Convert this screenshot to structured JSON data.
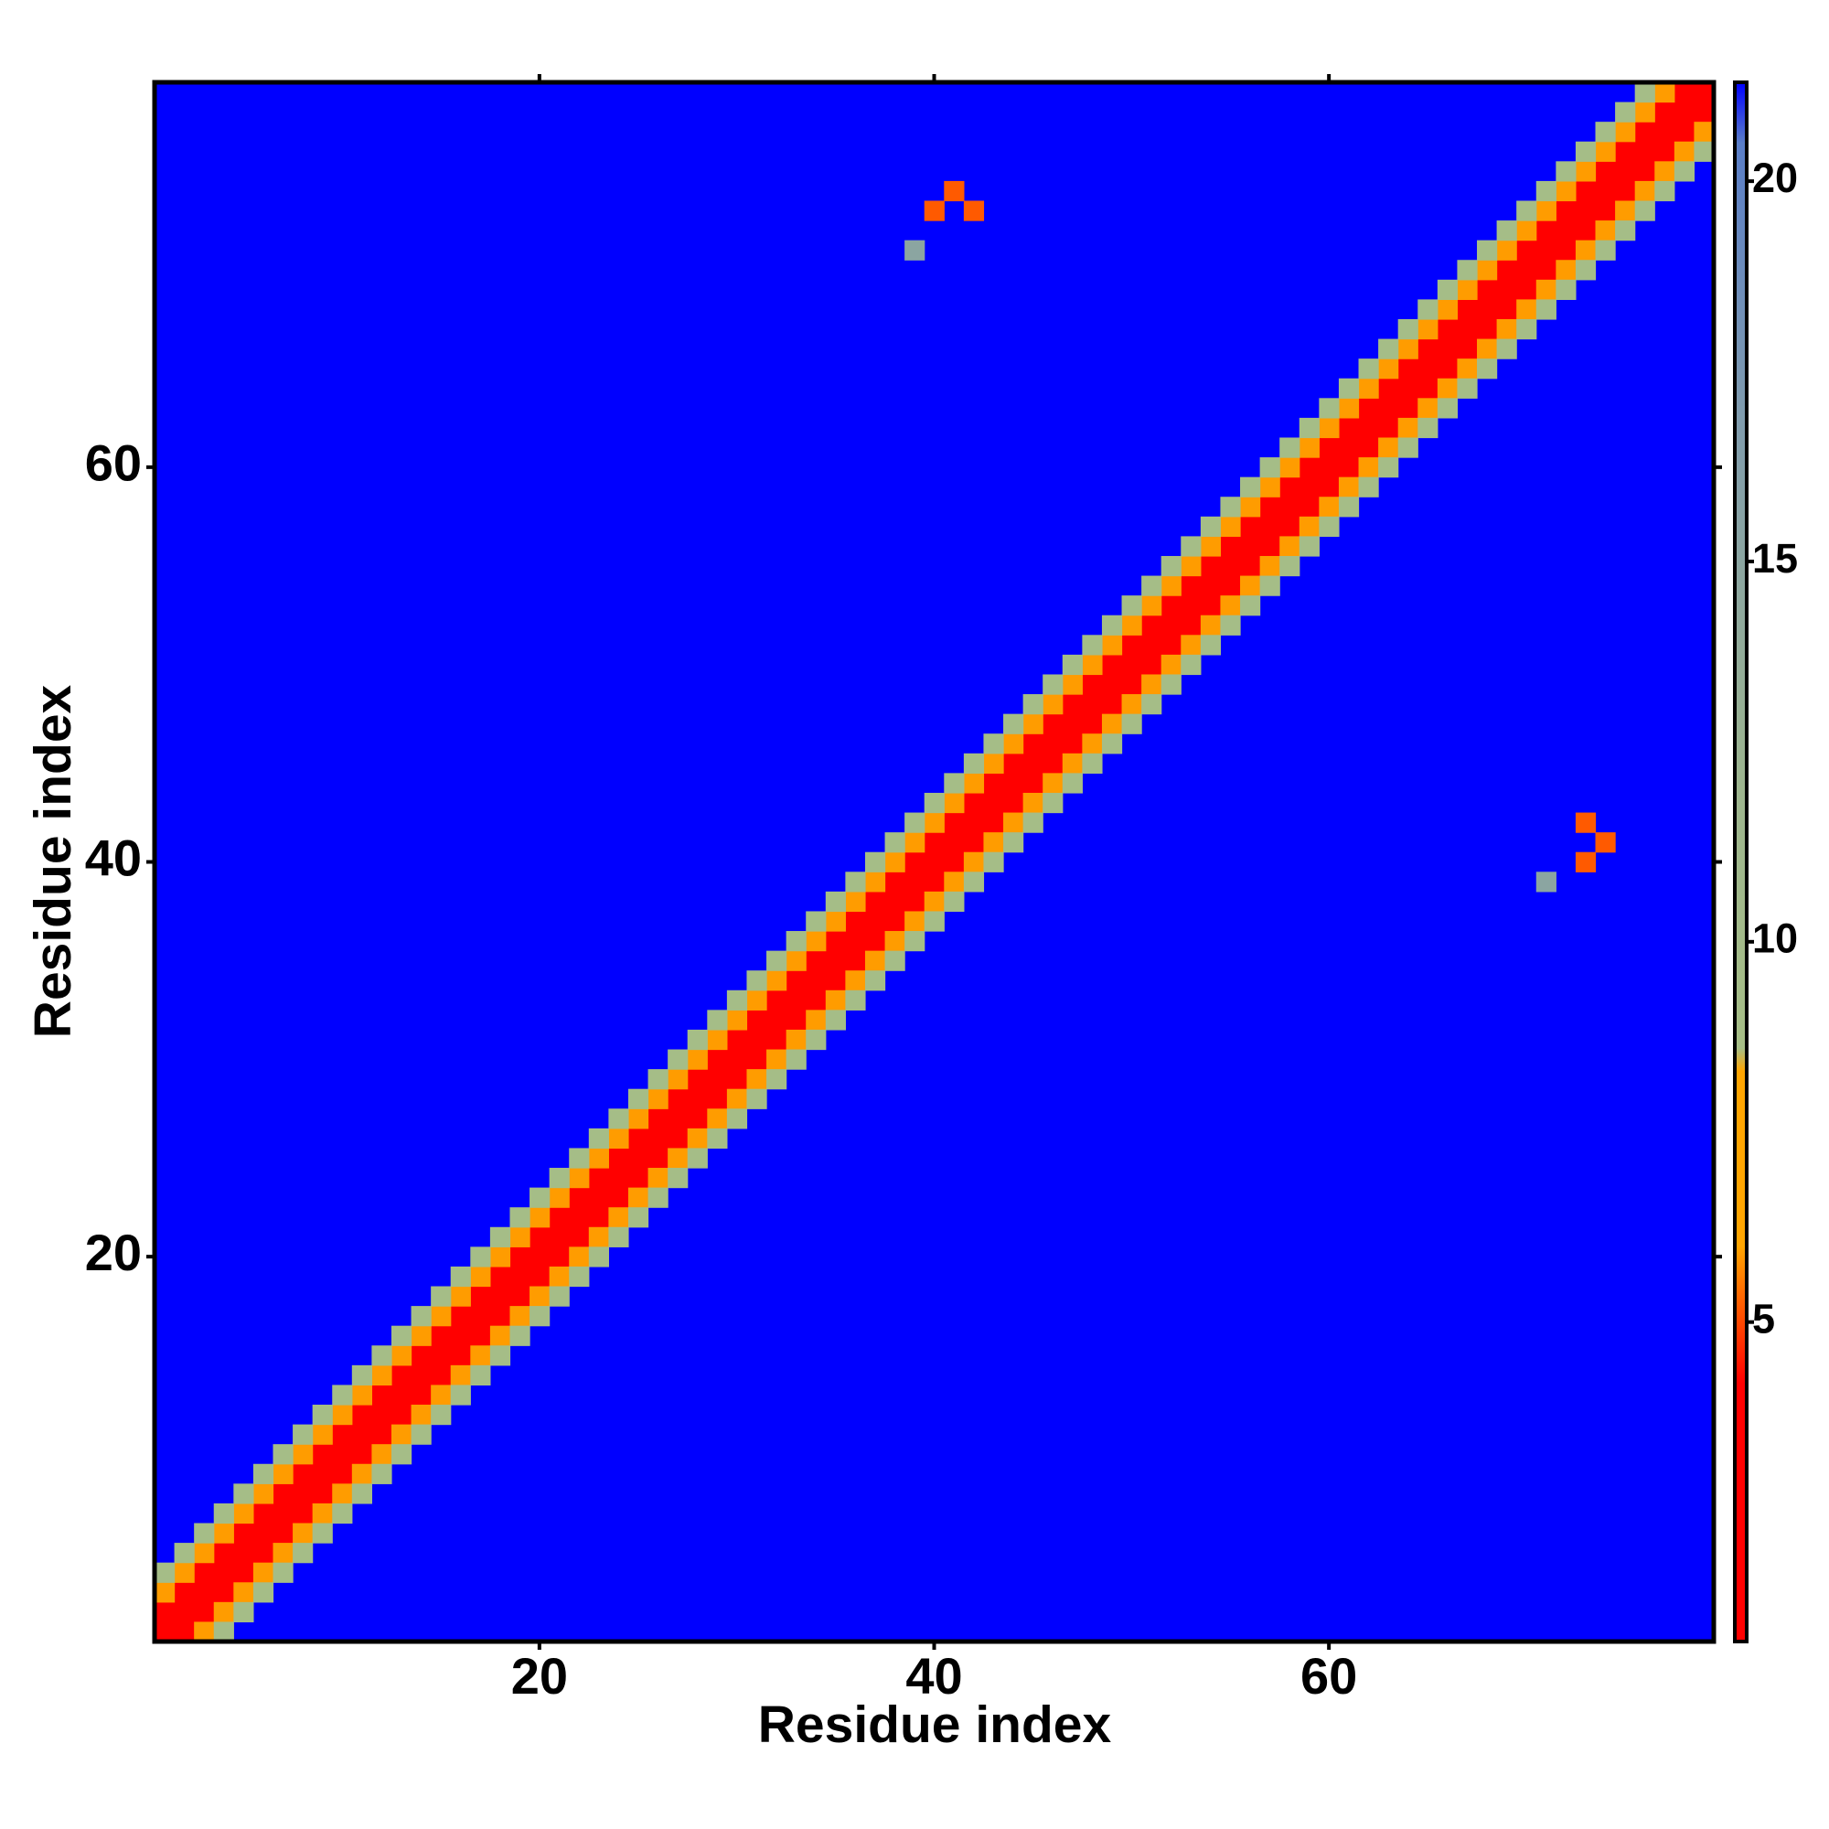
{
  "chart_data": {
    "type": "heatmap",
    "xlabel": "Residue index",
    "ylabel": "Residue index",
    "xlim": [
      0.5,
      79.5
    ],
    "ylim": [
      0.5,
      79.5
    ],
    "xticks": [
      20,
      40,
      60
    ],
    "yticks": [
      20,
      40,
      60
    ],
    "clim": [
      0.8,
      21.3
    ],
    "cticks": [
      5,
      10,
      15,
      20
    ],
    "colorscale": [
      [
        0.8,
        "#ff0000"
      ],
      [
        4.2,
        "#ff0000"
      ],
      [
        5.2,
        "#ff5a00"
      ],
      [
        6,
        "#ffa500"
      ],
      [
        8.3,
        "#ffa500"
      ],
      [
        8.6,
        "#a6be86"
      ],
      [
        12,
        "#9db58e"
      ],
      [
        17,
        "#7f9bae"
      ],
      [
        20.5,
        "#5a7ec8"
      ],
      [
        21.3,
        "#0000ff"
      ]
    ],
    "x": [
      1,
      2,
      3,
      4,
      5,
      6,
      7,
      8,
      9,
      10,
      11,
      12,
      13,
      14,
      15,
      16,
      17,
      18,
      19,
      20,
      21,
      22,
      23,
      24,
      25,
      26,
      27,
      28,
      29,
      30,
      31,
      32,
      33,
      34,
      35,
      36,
      37,
      38,
      39,
      40,
      41,
      42,
      43,
      44,
      45,
      46,
      47,
      48,
      49,
      50,
      51,
      52,
      53,
      54,
      55,
      56,
      57,
      58,
      59,
      60,
      61,
      62,
      63,
      64,
      65,
      66,
      67,
      68,
      69,
      70,
      71,
      72,
      73,
      74,
      75,
      76,
      77,
      78,
      79,
      2,
      3,
      4,
      5,
      6,
      7,
      8,
      9,
      10,
      11,
      12,
      13,
      14,
      15,
      16,
      17,
      18,
      19,
      20,
      21,
      22,
      23,
      24,
      25,
      26,
      27,
      28,
      29,
      30,
      31,
      32,
      33,
      34,
      35,
      36,
      37,
      38,
      39,
      40,
      41,
      42,
      43,
      44,
      45,
      46,
      47,
      48,
      49,
      50,
      51,
      52,
      53,
      54,
      55,
      56,
      57,
      58,
      59,
      60,
      61,
      62,
      63,
      64,
      65,
      66,
      67,
      68,
      69,
      70,
      71,
      72,
      73,
      74,
      75,
      76,
      77,
      78,
      79,
      1,
      2,
      3,
      4,
      5,
      6,
      7,
      8,
      9,
      10,
      11,
      12,
      13,
      14,
      15,
      16,
      17,
      18,
      19,
      20,
      21,
      22,
      23,
      24,
      25,
      26,
      27,
      28,
      29,
      30,
      31,
      32,
      33,
      34,
      35,
      36,
      37,
      38,
      39,
      40,
      41,
      42,
      43,
      44,
      45,
      46,
      47,
      48,
      49,
      50,
      51,
      52,
      53,
      54,
      55,
      56,
      57,
      58,
      59,
      60,
      61,
      62,
      63,
      64,
      65,
      66,
      67,
      68,
      69,
      70,
      71,
      72,
      73,
      74,
      75,
      76,
      77,
      78,
      3,
      4,
      5,
      6,
      7,
      8,
      9,
      10,
      11,
      12,
      13,
      14,
      15,
      16,
      17,
      18,
      19,
      20,
      21,
      22,
      23,
      24,
      25,
      26,
      27,
      28,
      29,
      30,
      31,
      32,
      33,
      34,
      35,
      36,
      37,
      38,
      39,
      40,
      41,
      42,
      43,
      44,
      45,
      46,
      47,
      48,
      49,
      50,
      51,
      52,
      53,
      54,
      55,
      56,
      57,
      58,
      59,
      60,
      61,
      62,
      63,
      64,
      65,
      66,
      67,
      68,
      69,
      70,
      71,
      72,
      73,
      74,
      75,
      76,
      77,
      78,
      79,
      1,
      2,
      3,
      4,
      5,
      6,
      7,
      8,
      9,
      10,
      11,
      12,
      13,
      14,
      15,
      16,
      17,
      18,
      19,
      20,
      21,
      22,
      23,
      24,
      25,
      26,
      27,
      28,
      29,
      30,
      31,
      32,
      33,
      34,
      35,
      36,
      37,
      38,
      39,
      40,
      41,
      42,
      43,
      44,
      45,
      46,
      47,
      48,
      49,
      50,
      51,
      52,
      53,
      54,
      55,
      56,
      57,
      58,
      59,
      60,
      61,
      62,
      63,
      64,
      65,
      66,
      67,
      68,
      69,
      70,
      71,
      72,
      73,
      74,
      75,
      76,
      77,
      4,
      5,
      6,
      7,
      8,
      9,
      10,
      11,
      12,
      13,
      14,
      15,
      16,
      17,
      18,
      19,
      20,
      21,
      22,
      23,
      24,
      25,
      26,
      27,
      28,
      29,
      30,
      31,
      32,
      33,
      34,
      35,
      36,
      37,
      38,
      39,
      40,
      41,
      42,
      43,
      44,
      45,
      46,
      47,
      48,
      49,
      50,
      51,
      52,
      53,
      54,
      55,
      56,
      57,
      58,
      59,
      60,
      61,
      62,
      63,
      64,
      65,
      66,
      67,
      68,
      69,
      70,
      71,
      72,
      73,
      74,
      75,
      76,
      77,
      78,
      79,
      1,
      2,
      3,
      4,
      5,
      6,
      7,
      8,
      9,
      10,
      11,
      12,
      13,
      14,
      15,
      16,
      17,
      18,
      19,
      20,
      21,
      22,
      23,
      24,
      25,
      26,
      27,
      28,
      29,
      30,
      31,
      32,
      33,
      34,
      35,
      36,
      37,
      38,
      39,
      40,
      41,
      42,
      43,
      44,
      45,
      46,
      47,
      48,
      49,
      50,
      51,
      52,
      53,
      54,
      55,
      56,
      57,
      58,
      59,
      60,
      61,
      62,
      63,
      64,
      65,
      66,
      67,
      68,
      69,
      70,
      71,
      72,
      73,
      74,
      75,
      76,
      41,
      40,
      42,
      39,
      74,
      73,
      73,
      71
    ],
    "y": [
      1,
      2,
      3,
      4,
      5,
      6,
      7,
      8,
      9,
      10,
      11,
      12,
      13,
      14,
      15,
      16,
      17,
      18,
      19,
      20,
      21,
      22,
      23,
      24,
      25,
      26,
      27,
      28,
      29,
      30,
      31,
      32,
      33,
      34,
      35,
      36,
      37,
      38,
      39,
      40,
      41,
      42,
      43,
      44,
      45,
      46,
      47,
      48,
      49,
      50,
      51,
      52,
      53,
      54,
      55,
      56,
      57,
      58,
      59,
      60,
      61,
      62,
      63,
      64,
      65,
      66,
      67,
      68,
      69,
      70,
      71,
      72,
      73,
      74,
      75,
      76,
      77,
      78,
      79,
      1,
      2,
      3,
      4,
      5,
      6,
      7,
      8,
      9,
      10,
      11,
      12,
      13,
      14,
      15,
      16,
      17,
      18,
      19,
      20,
      21,
      22,
      23,
      24,
      25,
      26,
      27,
      28,
      29,
      30,
      31,
      32,
      33,
      34,
      35,
      36,
      37,
      38,
      39,
      40,
      41,
      42,
      43,
      44,
      45,
      46,
      47,
      48,
      49,
      50,
      51,
      52,
      53,
      54,
      55,
      56,
      57,
      58,
      59,
      60,
      61,
      62,
      63,
      64,
      65,
      66,
      67,
      68,
      69,
      70,
      71,
      72,
      73,
      74,
      75,
      76,
      77,
      78,
      2,
      3,
      4,
      5,
      6,
      7,
      8,
      9,
      10,
      11,
      12,
      13,
      14,
      15,
      16,
      17,
      18,
      19,
      20,
      21,
      22,
      23,
      24,
      25,
      26,
      27,
      28,
      29,
      30,
      31,
      32,
      33,
      34,
      35,
      36,
      37,
      38,
      39,
      40,
      41,
      42,
      43,
      44,
      45,
      46,
      47,
      48,
      49,
      50,
      51,
      52,
      53,
      54,
      55,
      56,
      57,
      58,
      59,
      60,
      61,
      62,
      63,
      64,
      65,
      66,
      67,
      68,
      69,
      70,
      71,
      72,
      73,
      74,
      75,
      76,
      77,
      78,
      79,
      1,
      2,
      3,
      4,
      5,
      6,
      7,
      8,
      9,
      10,
      11,
      12,
      13,
      14,
      15,
      16,
      17,
      18,
      19,
      20,
      21,
      22,
      23,
      24,
      25,
      26,
      27,
      28,
      29,
      30,
      31,
      32,
      33,
      34,
      35,
      36,
      37,
      38,
      39,
      40,
      41,
      42,
      43,
      44,
      45,
      46,
      47,
      48,
      49,
      50,
      51,
      52,
      53,
      54,
      55,
      56,
      57,
      58,
      59,
      60,
      61,
      62,
      63,
      64,
      65,
      66,
      67,
      68,
      69,
      70,
      71,
      72,
      73,
      74,
      75,
      76,
      77,
      3,
      4,
      5,
      6,
      7,
      8,
      9,
      10,
      11,
      12,
      13,
      14,
      15,
      16,
      17,
      18,
      19,
      20,
      21,
      22,
      23,
      24,
      25,
      26,
      27,
      28,
      29,
      30,
      31,
      32,
      33,
      34,
      35,
      36,
      37,
      38,
      39,
      40,
      41,
      42,
      43,
      44,
      45,
      46,
      47,
      48,
      49,
      50,
      51,
      52,
      53,
      54,
      55,
      56,
      57,
      58,
      59,
      60,
      61,
      62,
      63,
      64,
      65,
      66,
      67,
      68,
      69,
      70,
      71,
      72,
      73,
      74,
      75,
      76,
      77,
      78,
      79,
      1,
      2,
      3,
      4,
      5,
      6,
      7,
      8,
      9,
      10,
      11,
      12,
      13,
      14,
      15,
      16,
      17,
      18,
      19,
      20,
      21,
      22,
      23,
      24,
      25,
      26,
      27,
      28,
      29,
      30,
      31,
      32,
      33,
      34,
      35,
      36,
      37,
      38,
      39,
      40,
      41,
      42,
      43,
      44,
      45,
      46,
      47,
      48,
      49,
      50,
      51,
      52,
      53,
      54,
      55,
      56,
      57,
      58,
      59,
      60,
      61,
      62,
      63,
      64,
      65,
      66,
      67,
      68,
      69,
      70,
      71,
      72,
      73,
      74,
      75,
      76,
      4,
      5,
      6,
      7,
      8,
      9,
      10,
      11,
      12,
      13,
      14,
      15,
      16,
      17,
      18,
      19,
      20,
      21,
      22,
      23,
      24,
      25,
      26,
      27,
      28,
      29,
      30,
      31,
      32,
      33,
      34,
      35,
      36,
      37,
      38,
      39,
      40,
      41,
      42,
      43,
      44,
      45,
      46,
      47,
      48,
      49,
      50,
      51,
      52,
      53,
      54,
      55,
      56,
      57,
      58,
      59,
      60,
      61,
      62,
      63,
      64,
      65,
      66,
      67,
      68,
      69,
      70,
      71,
      72,
      73,
      74,
      75,
      76,
      77,
      78,
      79,
      74,
      73,
      73,
      71,
      41,
      40,
      42,
      39
    ],
    "values": [
      1,
      1,
      1,
      1,
      1,
      1,
      1,
      1,
      1,
      1,
      1,
      1,
      1,
      1,
      1,
      1,
      1,
      1,
      1,
      1,
      1,
      1,
      1,
      1,
      1,
      1,
      1,
      1,
      1,
      1,
      1,
      1,
      1,
      1,
      1,
      1,
      1,
      1,
      1,
      1,
      1,
      1,
      1,
      1,
      1,
      1,
      1,
      1,
      1,
      1,
      1,
      1,
      1,
      1,
      1,
      1,
      1,
      1,
      1,
      1,
      1,
      1,
      1,
      1,
      1,
      1,
      1,
      1,
      1,
      1,
      1,
      1,
      1,
      1,
      1,
      1,
      1,
      1,
      1,
      3.8,
      3.8,
      3.8,
      3.8,
      3.8,
      3.8,
      3.8,
      3.8,
      3.8,
      3.8,
      3.8,
      3.8,
      3.8,
      3.8,
      3.8,
      3.8,
      3.8,
      3.8,
      3.8,
      3.8,
      3.8,
      3.8,
      3.8,
      3.8,
      3.8,
      3.8,
      3.8,
      3.8,
      3.8,
      3.8,
      3.8,
      3.8,
      3.8,
      3.8,
      3.8,
      3.8,
      3.8,
      3.8,
      3.8,
      3.8,
      3.8,
      3.8,
      3.8,
      3.8,
      3.8,
      3.8,
      3.8,
      3.8,
      3.8,
      3.8,
      3.8,
      3.8,
      3.8,
      3.8,
      3.8,
      3.8,
      3.8,
      3.8,
      3.8,
      3.8,
      3.8,
      3.8,
      3.8,
      3.8,
      3.8,
      3.8,
      3.8,
      3.8,
      3.8,
      3.8,
      3.8,
      3.8,
      3.8,
      3.8,
      3.8,
      3.8,
      3.8,
      3.8,
      3.8,
      3.8,
      3.8,
      3.8,
      3.8,
      3.8,
      3.8,
      3.8,
      3.8,
      3.8,
      3.8,
      3.8,
      3.8,
      3.8,
      3.8,
      3.8,
      3.8,
      3.8,
      3.8,
      3.8,
      3.8,
      3.8,
      3.8,
      3.8,
      3.8,
      3.8,
      3.8,
      3.8,
      3.8,
      3.8,
      3.8,
      3.8,
      3.8,
      3.8,
      3.8,
      3.8,
      3.8,
      3.8,
      3.8,
      3.8,
      3.8,
      3.8,
      3.8,
      3.8,
      3.8,
      3.8,
      3.8,
      3.8,
      3.8,
      3.8,
      3.8,
      3.8,
      3.8,
      3.8,
      3.8,
      3.8,
      3.8,
      3.8,
      3.8,
      3.8,
      3.8,
      3.8,
      3.8,
      3.8,
      3.8,
      3.8,
      3.8,
      3.8,
      3.8,
      3.8,
      3.8,
      3.8,
      3.8,
      3.8,
      3.8,
      3.8,
      3.8,
      3.8,
      5.9,
      5.9,
      5.9,
      5.9,
      5.9,
      5.9,
      5.9,
      5.9,
      5.9,
      5.9,
      5.9,
      5.9,
      5.9,
      5.9,
      5.9,
      5.9,
      5.9,
      5.9,
      5.9,
      5.9,
      5.9,
      5.9,
      5.9,
      5.9,
      5.9,
      5.9,
      5.9,
      5.9,
      5.9,
      5.9,
      5.9,
      5.9,
      5.9,
      5.9,
      5.9,
      5.9,
      5.9,
      5.9,
      5.9,
      5.9,
      5.9,
      5.9,
      5.9,
      5.9,
      5.9,
      5.9,
      5.9,
      5.9,
      5.9,
      5.9,
      5.9,
      5.9,
      5.9,
      5.9,
      5.9,
      5.9,
      5.9,
      5.9,
      5.9,
      5.9,
      5.9,
      5.9,
      5.9,
      5.9,
      5.9,
      5.9,
      5.9,
      5.9,
      5.9,
      5.9,
      5.9,
      5.9,
      5.9,
      5.9,
      5.9,
      5.9,
      5.9,
      5.9,
      5.9,
      5.9,
      5.9,
      5.9,
      5.9,
      5.9,
      5.9,
      5.9,
      5.9,
      5.9,
      5.9,
      5.9,
      5.9,
      5.9,
      5.9,
      5.9,
      5.9,
      5.9,
      5.9,
      5.9,
      5.9,
      5.9,
      5.9,
      5.9,
      5.9,
      5.9,
      5.9,
      5.9,
      5.9,
      5.9,
      5.9,
      5.9,
      5.9,
      5.9,
      5.9,
      5.9,
      5.9,
      5.9,
      5.9,
      5.9,
      5.9,
      5.9,
      5.9,
      5.9,
      5.9,
      5.9,
      5.9,
      5.9,
      5.9,
      5.9,
      5.9,
      5.9,
      5.9,
      5.9,
      5.9,
      5.9,
      5.9,
      5.9,
      5.9,
      5.9,
      5.9,
      5.9,
      5.9,
      5.9,
      5.9,
      5.9,
      5.9,
      5.9,
      5.9,
      5.9,
      5.9,
      5.9,
      5.9,
      5.9,
      5.9,
      5.9,
      9,
      9,
      9,
      9,
      9,
      9,
      9,
      9,
      9,
      9,
      9,
      9,
      9,
      9,
      9,
      9,
      9,
      9,
      9,
      9,
      9,
      9,
      9,
      9,
      9,
      9,
      9,
      9,
      9,
      9,
      9,
      9,
      9,
      9,
      9,
      9,
      9,
      9,
      9,
      9,
      9,
      9,
      9,
      9,
      9,
      9,
      9,
      9,
      9,
      9,
      9,
      9,
      9,
      9,
      9,
      9,
      9,
      9,
      9,
      9,
      9,
      9,
      9,
      9,
      9,
      9,
      9,
      9,
      9,
      9,
      9,
      9,
      9,
      9,
      9,
      9,
      9,
      9,
      9,
      9,
      9,
      9,
      9,
      9,
      9,
      9,
      9,
      9,
      9,
      9,
      9,
      9,
      9,
      9,
      9,
      9,
      9,
      9,
      9,
      9,
      9,
      9,
      9,
      9,
      9,
      9,
      9,
      9,
      9,
      9,
      9,
      9,
      9,
      9,
      9,
      9,
      9,
      9,
      9,
      9,
      9,
      9,
      9,
      9,
      9,
      9,
      9,
      9,
      9,
      9,
      9,
      9,
      9,
      9,
      9,
      9,
      9,
      9,
      9,
      9,
      9,
      9,
      9,
      9,
      9,
      9,
      9,
      9,
      9,
      9,
      9,
      9,
      5.2,
      5.2,
      5.2,
      15,
      5.2,
      5.2,
      5.2,
      15
    ]
  }
}
